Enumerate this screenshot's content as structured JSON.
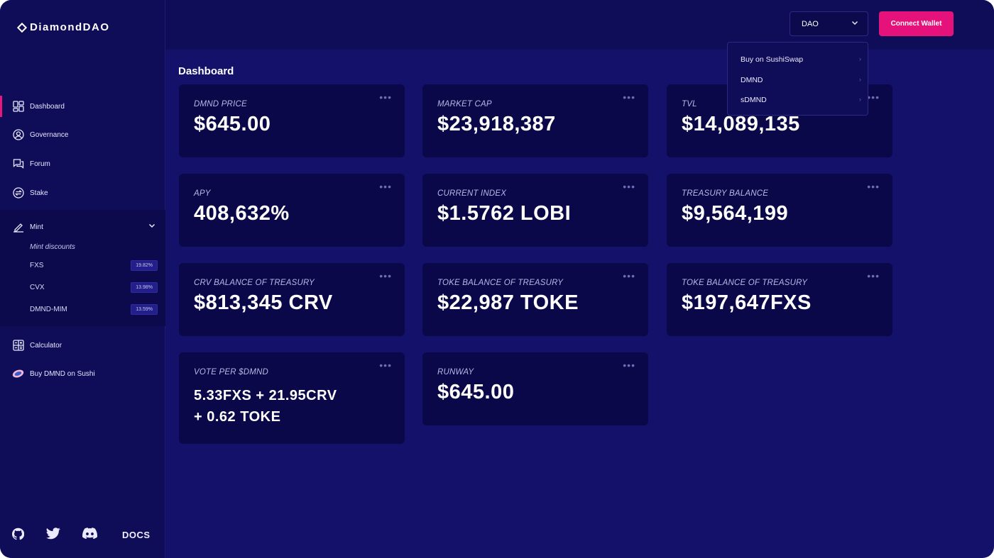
{
  "brand": {
    "name": "DiamondDAO"
  },
  "sidebar": {
    "items": [
      {
        "label": "Dashboard",
        "icon": "dashboard-icon"
      },
      {
        "label": "Governance",
        "icon": "user-circle-icon"
      },
      {
        "label": "Forum",
        "icon": "forum-icon"
      },
      {
        "label": "Stake",
        "icon": "stake-swap-icon"
      }
    ],
    "mint": {
      "label": "Mint",
      "sublabel": "Mint discounts",
      "rows": [
        {
          "name": "FXS",
          "pct": "19.82%"
        },
        {
          "name": "CVX",
          "pct": "13.98%"
        },
        {
          "name": "DMND-MIM",
          "pct": "13.59%"
        }
      ]
    },
    "bottom_items": [
      {
        "label": "Calculator",
        "icon": "calculator-icon"
      },
      {
        "label": "Buy DMND on Sushi",
        "icon": "sushi-icon"
      }
    ],
    "docs_label": "DOCS"
  },
  "topbar": {
    "dao_select_value": "DAO",
    "connect_label": "Connect Wallet"
  },
  "dropdown": {
    "items": [
      "Buy on SushiSwap",
      "DMND",
      "sDMND"
    ]
  },
  "page_title": "Dashboard",
  "cards": [
    {
      "label": "DMND PRICE",
      "value": "$645.00"
    },
    {
      "label": "MARKET CAP",
      "value": "$23,918,387"
    },
    {
      "label": "TVL",
      "value": "$14,089,135"
    },
    {
      "label": "APY",
      "value": "408,632%"
    },
    {
      "label": "CURRENT INDEX",
      "value": "$1.5762 LOBI"
    },
    {
      "label": "TREASURY BALANCE",
      "value": "$9,564,199"
    },
    {
      "label": "CRV BALANCE OF TREASURY",
      "value": "$813,345 CRV"
    },
    {
      "label": "TOKE BALANCE OF TREASURY",
      "value": "$22,987 TOKE"
    },
    {
      "label": "TOKE BALANCE OF TREASURY",
      "value": "$197,647FXS"
    },
    {
      "label": "VOTE PER $DMND",
      "value_line1": "5.33FXS + 21.95CRV",
      "value_line2": "+ 0.62 TOKE"
    },
    {
      "label": "RUNWAY",
      "value": "$645.00"
    }
  ],
  "colors": {
    "accent": "#e5127b",
    "bg": "#13116a",
    "sidebar": "#0f0d57",
    "card": "#0a0848"
  }
}
